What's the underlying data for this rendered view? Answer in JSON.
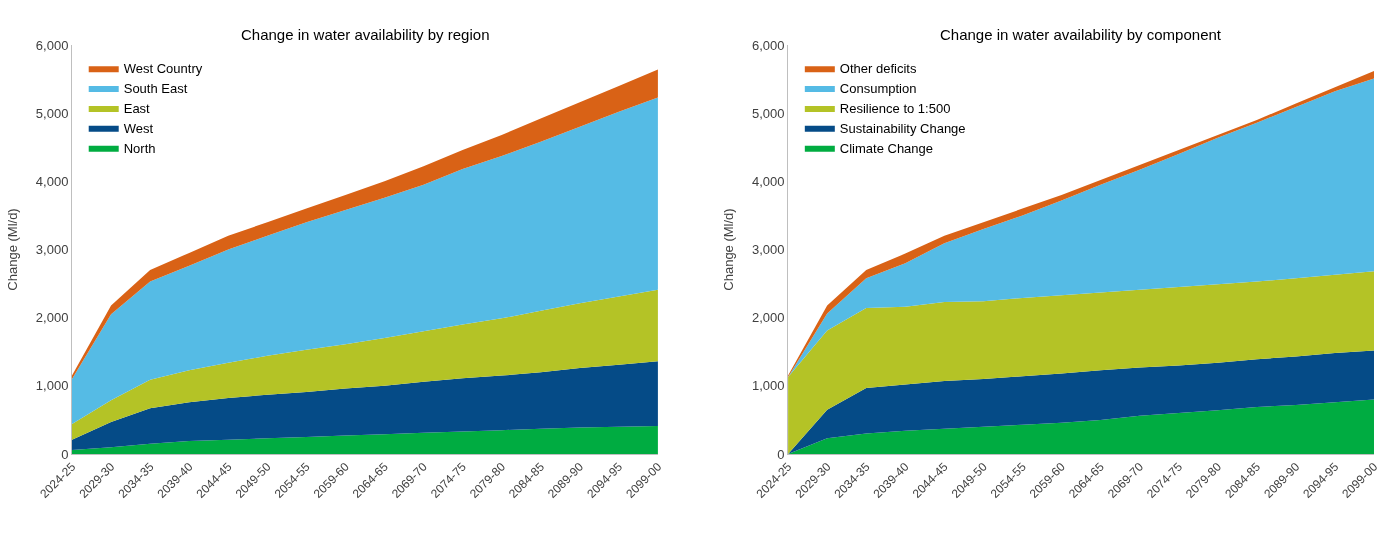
{
  "chart_data": [
    {
      "type": "area",
      "title": "Change in water availability by region",
      "ylabel": "Change (Ml/d)",
      "stacked": true,
      "legend": "top left",
      "categories": [
        "2024-25",
        "2029-30",
        "2034-35",
        "2039-40",
        "2044-45",
        "2049-50",
        "2054-55",
        "2059-60",
        "2064-65",
        "2069-70",
        "2074-75",
        "2079-80",
        "2084-85",
        "2089-90",
        "2094-95",
        "2099-00"
      ],
      "ylim": [
        0,
        6000
      ],
      "yticks": [
        {
          "value": 0,
          "label": "0"
        },
        {
          "value": 1000,
          "label": "1,000"
        },
        {
          "value": 2000,
          "label": "2,000"
        },
        {
          "value": 3000,
          "label": "3,000"
        },
        {
          "value": 4000,
          "label": "4,000"
        },
        {
          "value": 5000,
          "label": "5,000"
        },
        {
          "value": 6000,
          "label": "6,000"
        }
      ],
      "series": [
        {
          "name": "North",
          "color": "#00ac41",
          "values": [
            60,
            100,
            150,
            190,
            210,
            230,
            250,
            270,
            290,
            310,
            330,
            350,
            370,
            390,
            400,
            410
          ]
        },
        {
          "name": "West",
          "color": "#054b87",
          "values": [
            150,
            370,
            520,
            570,
            610,
            640,
            660,
            690,
            710,
            750,
            780,
            800,
            830,
            870,
            910,
            950
          ]
        },
        {
          "name": "East",
          "color": "#b4c326",
          "values": [
            230,
            320,
            420,
            470,
            520,
            570,
            620,
            650,
            700,
            740,
            790,
            840,
            900,
            950,
            1000,
            1050
          ]
        },
        {
          "name": "South East",
          "color": "#55bbe5",
          "values": [
            660,
            1260,
            1440,
            1530,
            1660,
            1760,
            1870,
            1970,
            2060,
            2150,
            2280,
            2380,
            2480,
            2590,
            2710,
            2820
          ]
        },
        {
          "name": "West Country",
          "color": "#d96216",
          "values": [
            50,
            130,
            170,
            190,
            200,
            200,
            200,
            220,
            240,
            270,
            280,
            310,
            340,
            360,
            380,
            410
          ]
        }
      ]
    },
    {
      "type": "area",
      "title": "Change in water availability by component",
      "ylabel": "Change (Ml/d)",
      "stacked": true,
      "legend": "top left",
      "categories": [
        "2024-25",
        "2029-30",
        "2034-35",
        "2039-40",
        "2044-45",
        "2049-50",
        "2054-55",
        "2059-60",
        "2064-65",
        "2069-70",
        "2074-75",
        "2079-80",
        "2084-85",
        "2089-90",
        "2094-95",
        "2099-00"
      ],
      "ylim": [
        0,
        6000
      ],
      "yticks": [
        {
          "value": 0,
          "label": "0"
        },
        {
          "value": 1000,
          "label": "1,000"
        },
        {
          "value": 2000,
          "label": "2,000"
        },
        {
          "value": 3000,
          "label": "3,000"
        },
        {
          "value": 4000,
          "label": "4,000"
        },
        {
          "value": 5000,
          "label": "5,000"
        },
        {
          "value": 6000,
          "label": "6,000"
        }
      ],
      "series": [
        {
          "name": "Climate Change",
          "color": "#00ac41",
          "values": [
            0,
            230,
            300,
            340,
            370,
            400,
            430,
            460,
            500,
            560,
            600,
            640,
            690,
            720,
            760,
            800
          ]
        },
        {
          "name": "Sustainability Change",
          "color": "#054b87",
          "values": [
            0,
            420,
            670,
            680,
            700,
            700,
            710,
            720,
            730,
            710,
            700,
            700,
            700,
            710,
            720,
            720
          ]
        },
        {
          "name": "Resilience to 1:500",
          "color": "#b4c326",
          "values": [
            1130,
            1160,
            1170,
            1140,
            1160,
            1140,
            1150,
            1150,
            1140,
            1140,
            1150,
            1150,
            1140,
            1150,
            1150,
            1160
          ]
        },
        {
          "name": "Consumption",
          "color": "#55bbe5",
          "values": [
            0,
            250,
            440,
            640,
            860,
            1060,
            1210,
            1390,
            1580,
            1760,
            1950,
            2150,
            2330,
            2510,
            2690,
            2830
          ]
        },
        {
          "name": "Other deficits",
          "color": "#d96216",
          "values": [
            20,
            120,
            120,
            140,
            110,
            100,
            100,
            80,
            70,
            70,
            60,
            40,
            40,
            50,
            60,
            110
          ]
        }
      ]
    }
  ]
}
